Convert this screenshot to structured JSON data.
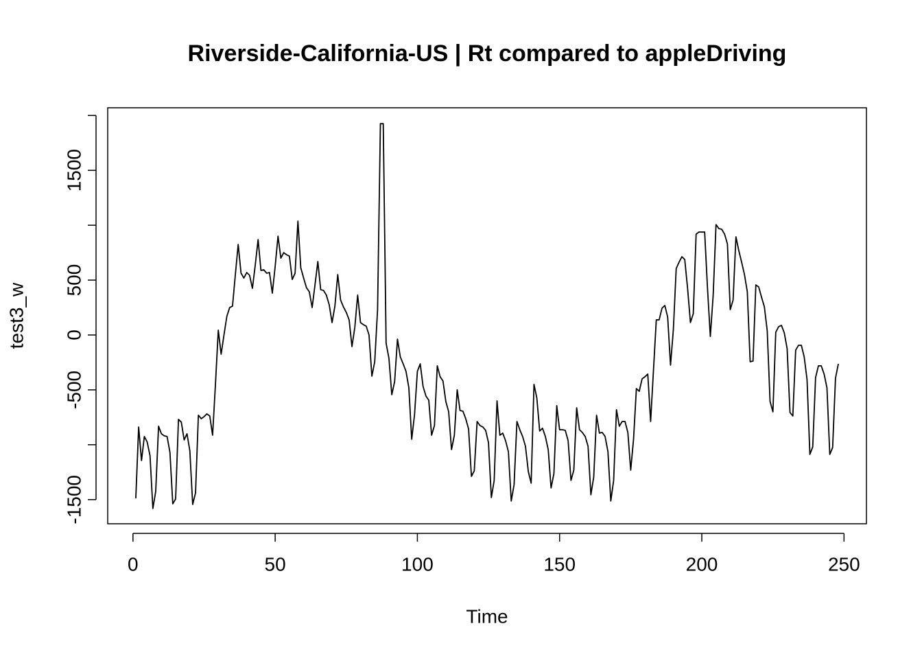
{
  "chart_data": {
    "type": "line",
    "title": "Riverside-California-US | Rt compared to appleDriving",
    "xlabel": "Time",
    "ylabel": "test3_w",
    "xlim": [
      -8.88,
      257.88
    ],
    "xticks": [
      0,
      50,
      100,
      150,
      200,
      250
    ],
    "ylim": [
      -1720,
      2070
    ],
    "yticks": [
      -1500,
      {
        "value": -1000,
        "label": null
      },
      -500,
      0,
      500,
      {
        "value": 1000,
        "label": null
      },
      1500,
      {
        "value": 2000,
        "label": null
      }
    ],
    "grid": false,
    "series": [
      {
        "color": "#000000",
        "x": [
          1,
          2,
          3,
          4,
          5,
          6,
          7,
          8,
          9,
          10,
          11,
          12,
          13,
          14,
          15,
          16,
          17,
          18,
          19,
          20,
          21,
          22,
          23,
          24,
          25,
          26,
          27,
          28,
          29,
          30,
          31,
          32,
          33,
          34,
          35,
          36,
          37,
          38,
          39,
          40,
          41,
          42,
          43,
          44,
          45,
          46,
          47,
          48,
          49,
          50,
          51,
          52,
          53,
          54,
          55,
          56,
          57,
          58,
          59,
          60,
          61,
          62,
          63,
          64,
          65,
          66,
          67,
          68,
          69,
          70,
          71,
          72,
          73,
          74,
          75,
          76,
          77,
          78,
          79,
          80,
          81,
          82,
          83,
          84,
          85,
          86,
          87,
          88,
          89,
          90,
          91,
          92,
          93,
          94,
          95,
          96,
          97,
          98,
          99,
          100,
          101,
          102,
          103,
          104,
          105,
          106,
          107,
          108,
          109,
          110,
          111,
          112,
          113,
          114,
          115,
          116,
          117,
          118,
          119,
          120,
          121,
          122,
          123,
          124,
          125,
          126,
          127,
          128,
          129,
          130,
          131,
          132,
          133,
          134,
          135,
          136,
          137,
          138,
          139,
          140,
          141,
          142,
          143,
          144,
          145,
          146,
          147,
          148,
          149,
          150,
          151,
          152,
          153,
          154,
          155,
          156,
          157,
          158,
          159,
          160,
          161,
          162,
          163,
          164,
          165,
          166,
          167,
          168,
          169,
          170,
          171,
          172,
          173,
          174,
          175,
          176,
          177,
          178,
          179,
          180,
          181,
          182,
          183,
          184,
          185,
          186,
          187,
          188,
          189,
          190,
          191,
          192,
          193,
          194,
          195,
          196,
          197,
          198,
          199,
          200,
          201,
          202,
          203,
          204,
          205,
          206,
          207,
          208,
          209,
          210,
          211,
          212,
          213,
          214,
          215,
          216,
          217,
          218,
          219,
          220,
          221,
          222,
          223,
          224,
          225,
          226,
          227,
          228,
          229,
          230,
          231,
          232,
          233,
          234,
          235,
          236,
          237,
          238,
          239,
          240,
          241,
          242,
          243,
          244,
          245,
          246,
          247,
          248
        ],
        "values": [
          -1488,
          -838,
          -1144,
          -925,
          -975,
          -1100,
          -1581,
          -1425,
          -831,
          -900,
          -919,
          -925,
          -1069,
          -1538,
          -1494,
          -769,
          -794,
          -956,
          -900,
          -1056,
          -1544,
          -1438,
          -731,
          -763,
          -744,
          -719,
          -738,
          -913,
          -450,
          44,
          -175,
          0,
          169,
          250,
          263,
          550,
          825,
          563,
          519,
          569,
          544,
          425,
          638,
          869,
          588,
          594,
          563,
          569,
          381,
          625,
          900,
          700,
          750,
          731,
          719,
          506,
          563,
          1038,
          613,
          519,
          431,
          394,
          250,
          456,
          669,
          413,
          406,
          363,
          275,
          113,
          263,
          550,
          319,
          256,
          206,
          138,
          -106,
          69,
          363,
          113,
          94,
          81,
          0,
          -375,
          -244,
          231,
          1925,
          1925,
          -75,
          -213,
          -544,
          -425,
          -38,
          -200,
          -263,
          -331,
          -481,
          -950,
          -725,
          -331,
          -263,
          -469,
          -556,
          -594,
          -913,
          -825,
          -281,
          -381,
          -419,
          -606,
          -700,
          -1044,
          -913,
          -500,
          -688,
          -694,
          -763,
          -856,
          -1288,
          -1238,
          -788,
          -825,
          -838,
          -869,
          -981,
          -1481,
          -1325,
          -600,
          -913,
          -894,
          -963,
          -1063,
          -1513,
          -1363,
          -788,
          -863,
          -925,
          -1013,
          -1244,
          -1350,
          -450,
          -575,
          -875,
          -850,
          -925,
          -1044,
          -1394,
          -1263,
          -644,
          -863,
          -863,
          -869,
          -963,
          -1325,
          -1231,
          -663,
          -863,
          -888,
          -925,
          -1013,
          -1456,
          -1294,
          -731,
          -894,
          -888,
          -925,
          -1063,
          -1513,
          -1325,
          -681,
          -831,
          -788,
          -788,
          -888,
          -1231,
          -950,
          -488,
          -513,
          -400,
          -381,
          -356,
          -788,
          -325,
          138,
          138,
          244,
          269,
          163,
          -275,
          50,
          606,
          663,
          713,
          688,
          425,
          113,
          194,
          919,
          938,
          938,
          938,
          425,
          -13,
          363,
          1006,
          969,
          963,
          919,
          831,
          231,
          319,
          894,
          769,
          663,
          550,
          394,
          -244,
          -238,
          456,
          438,
          344,
          256,
          38,
          -606,
          -700,
          25,
          75,
          88,
          19,
          -125,
          -706,
          -738,
          -138,
          -94,
          -94,
          -200,
          -406,
          -1088,
          -1019,
          -388,
          -281,
          -281,
          -356,
          -481,
          -1088,
          -1025,
          -394,
          -263
        ]
      }
    ]
  }
}
